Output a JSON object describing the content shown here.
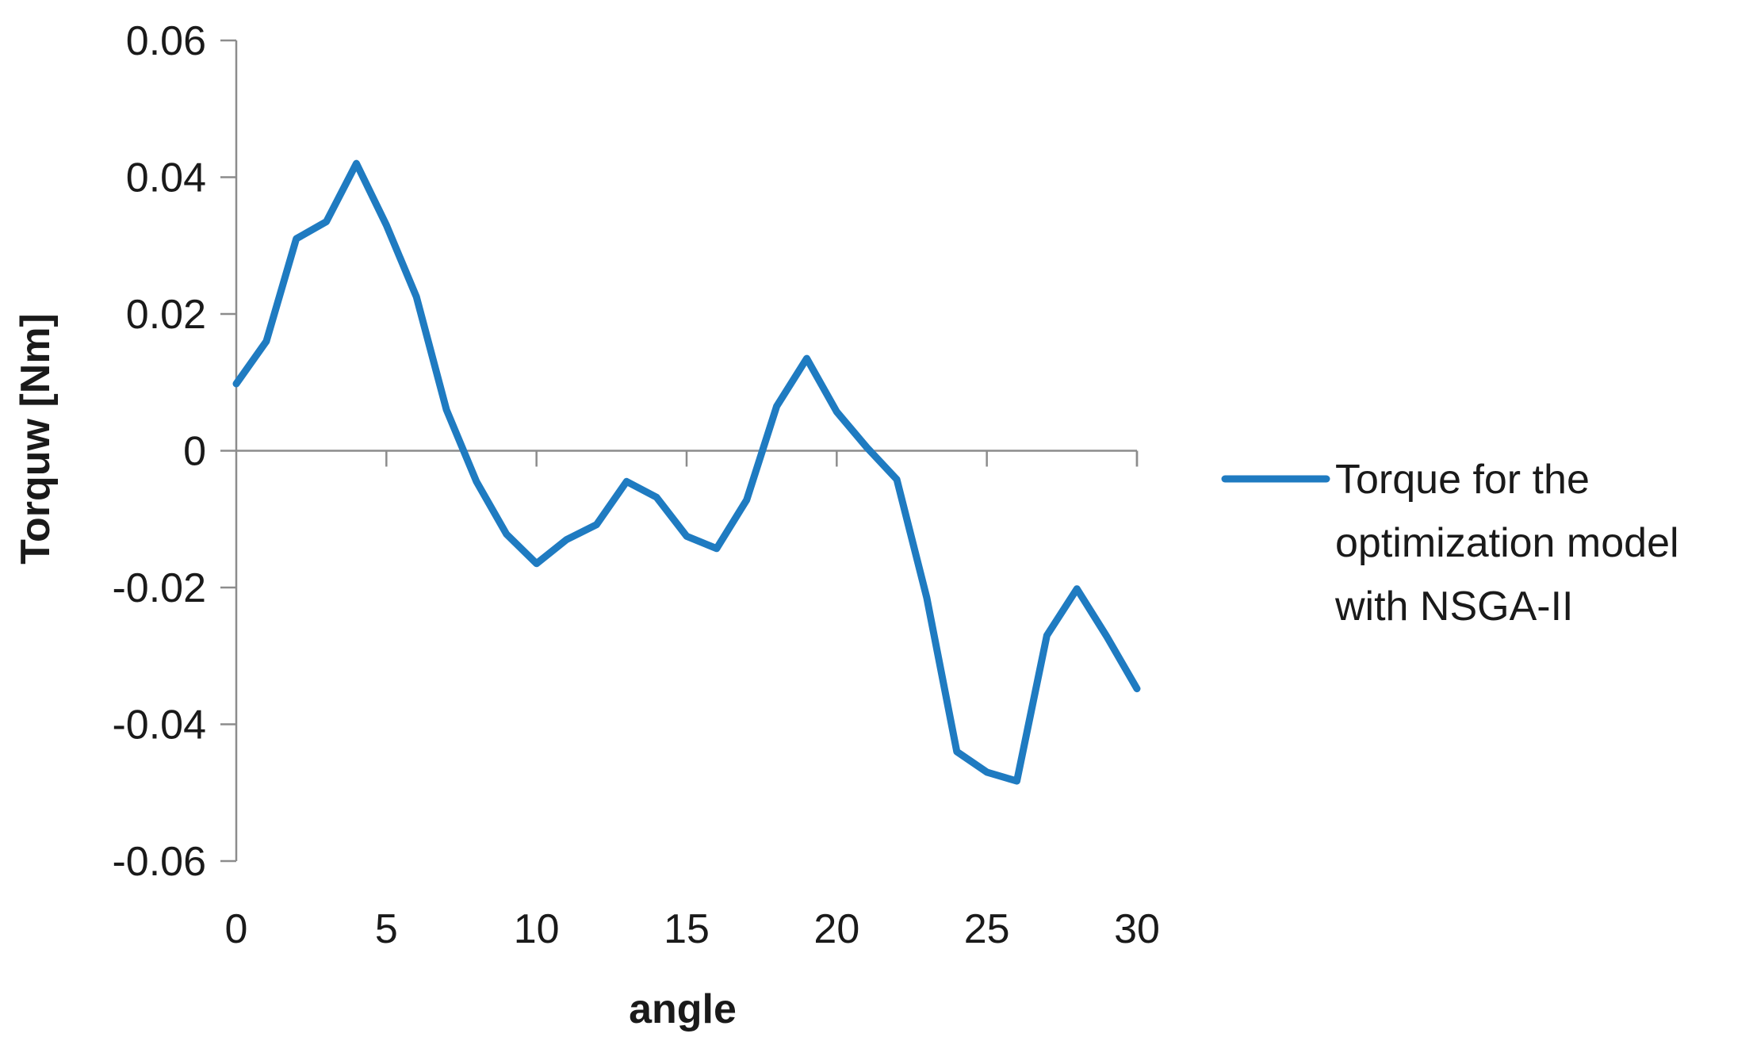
{
  "chart_data": {
    "type": "line",
    "title": "",
    "xlabel": "angle",
    "ylabel": "Torquw [Nm]",
    "xlim": [
      0,
      30
    ],
    "ylim": [
      -0.06,
      0.06
    ],
    "x_ticks": [
      0,
      5,
      10,
      15,
      20,
      25,
      30
    ],
    "y_ticks": [
      0.06,
      0.04,
      0.02,
      0,
      -0.02,
      -0.04,
      -0.06
    ],
    "x_tick_labels": [
      "0",
      "5",
      "10",
      "15",
      "20",
      "25",
      "30"
    ],
    "y_tick_labels": [
      "0.06",
      "0.04",
      "0.02",
      "0",
      "-0.02",
      "-0.04",
      "-0.06"
    ],
    "grid": false,
    "legend_position": "right",
    "series": [
      {
        "name": "Torque for the optimization model with NSGA-II",
        "legend_lines": [
          "Torque for the",
          "optimization model",
          "with NSGA-II"
        ],
        "color": "#1f7bc1",
        "x": [
          0,
          1,
          2,
          3,
          4,
          5,
          6,
          7,
          8,
          9,
          10,
          11,
          12,
          13,
          14,
          15,
          16,
          17,
          18,
          19,
          20,
          21,
          22,
          23,
          24,
          25,
          26,
          27,
          28,
          29,
          30
        ],
        "y": [
          0.0098,
          0.016,
          0.031,
          0.0335,
          0.042,
          0.033,
          0.0225,
          0.006,
          -0.0045,
          -0.0122,
          -0.0165,
          -0.013,
          -0.0108,
          -0.0045,
          -0.0068,
          -0.0125,
          -0.0143,
          -0.0072,
          0.0065,
          0.0135,
          0.0057,
          0.0005,
          -0.0042,
          -0.0215,
          -0.044,
          -0.047,
          -0.0483,
          -0.027,
          -0.0202,
          -0.0272,
          -0.0348
        ]
      }
    ]
  }
}
